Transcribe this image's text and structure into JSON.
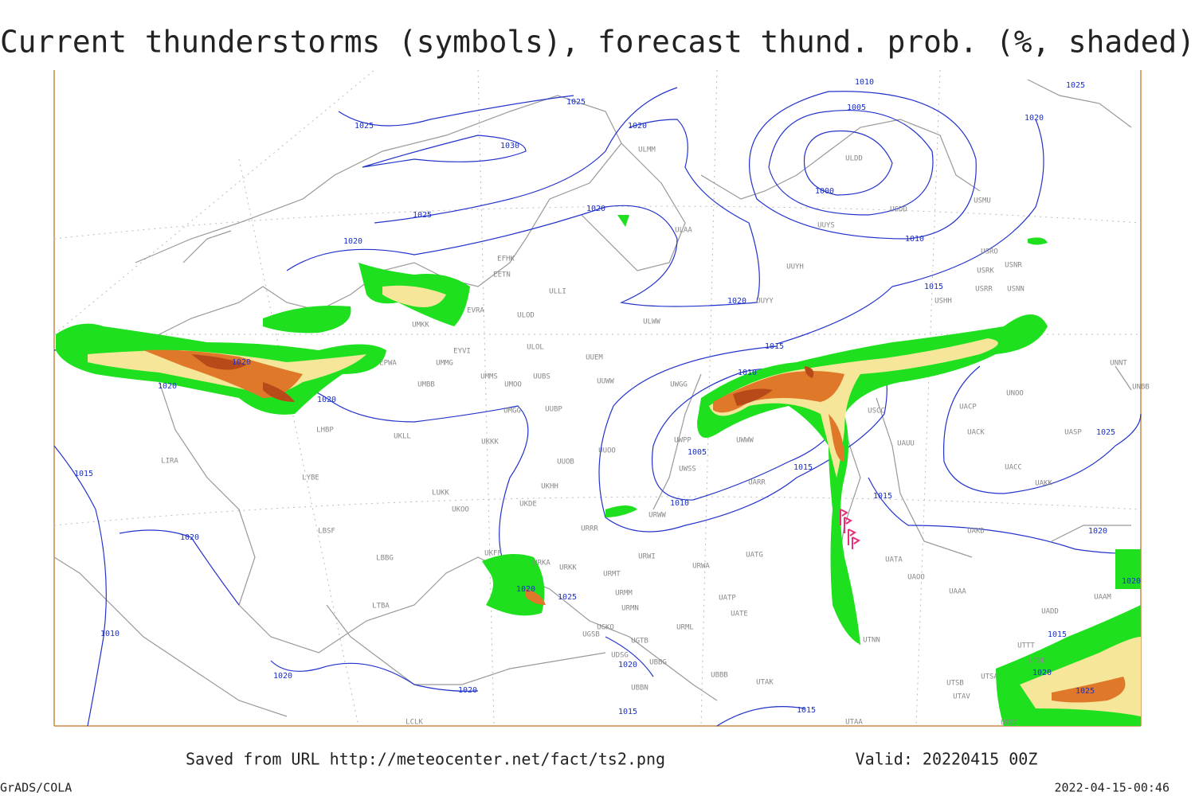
{
  "header": {
    "title": "Current thunderstorms (symbols), forecast thund. prob. (%, shaded)"
  },
  "map": {
    "isobar_labels": [
      1025,
      1025,
      1030,
      1020,
      1025,
      1020,
      1020,
      1020,
      1010,
      1005,
      1000,
      1010,
      1025,
      1020,
      1015,
      1015,
      1010,
      1020,
      1020,
      1020,
      1015,
      1020,
      1005,
      1010,
      1015,
      1015,
      1025,
      1020,
      1020,
      1025,
      1010,
      1020,
      1020,
      1020,
      1015,
      1015,
      1020,
      1015,
      1020,
      1025
    ],
    "station_labels": [
      "ULMM",
      "ULDD",
      "USMU",
      "USDD",
      "UUYS",
      "ULAA",
      "EFHK",
      "EETN",
      "UUYH",
      "USRO",
      "USRK",
      "USNR",
      "USRR",
      "USNN",
      "USHH",
      "UUYY",
      "ULLI",
      "EVRA",
      "ULOD",
      "UMKK",
      "ULWW",
      "EYVI",
      "ULOL",
      "UUEM",
      "UMMG",
      "EPWA",
      "UMMS",
      "UMOO",
      "UUBS",
      "UUWW",
      "UMBB",
      "UWGG",
      "UNNT",
      "UNBB",
      "UNOO",
      "UUBP",
      "UMGG",
      "UACP",
      "USCC",
      "UKLL",
      "LHBP",
      "UKKK",
      "UACK",
      "UASP",
      "UWWW",
      "UWPP",
      "UUOO",
      "UAUU",
      "UUOB",
      "LIRA",
      "UACC",
      "UAKK",
      "UWSS",
      "UARR",
      "LYBE",
      "UKHH",
      "LUKK",
      "UKOO",
      "UKDE",
      "URWW",
      "URRR",
      "UAKD",
      "LBSF",
      "UATG",
      "URWI",
      "UKFF",
      "LBBG",
      "URKA",
      "URKK",
      "URMT",
      "URWA",
      "UATA",
      "UAOO",
      "UAAA",
      "UAAM",
      "UATP",
      "URMM",
      "UATE",
      "URMN",
      "LTBA",
      "UADD",
      "UGKO",
      "UTTT",
      "UGTB",
      "URML",
      "UGSB",
      "UTNN",
      "UTDD",
      "UDSG",
      "UBBG",
      "UBBB",
      "UTSA",
      "UTAK",
      "UTSB",
      "UBBN",
      "UTAV",
      "LCLK",
      "UTAA",
      "UTST"
    ]
  },
  "footer": {
    "source": "Saved from URL http://meteocenter.net/fact/ts2.png",
    "valid": "Valid: 20220415 00Z",
    "software": "GrADS/COLA",
    "timestamp": "2022-04-15-00:46"
  }
}
